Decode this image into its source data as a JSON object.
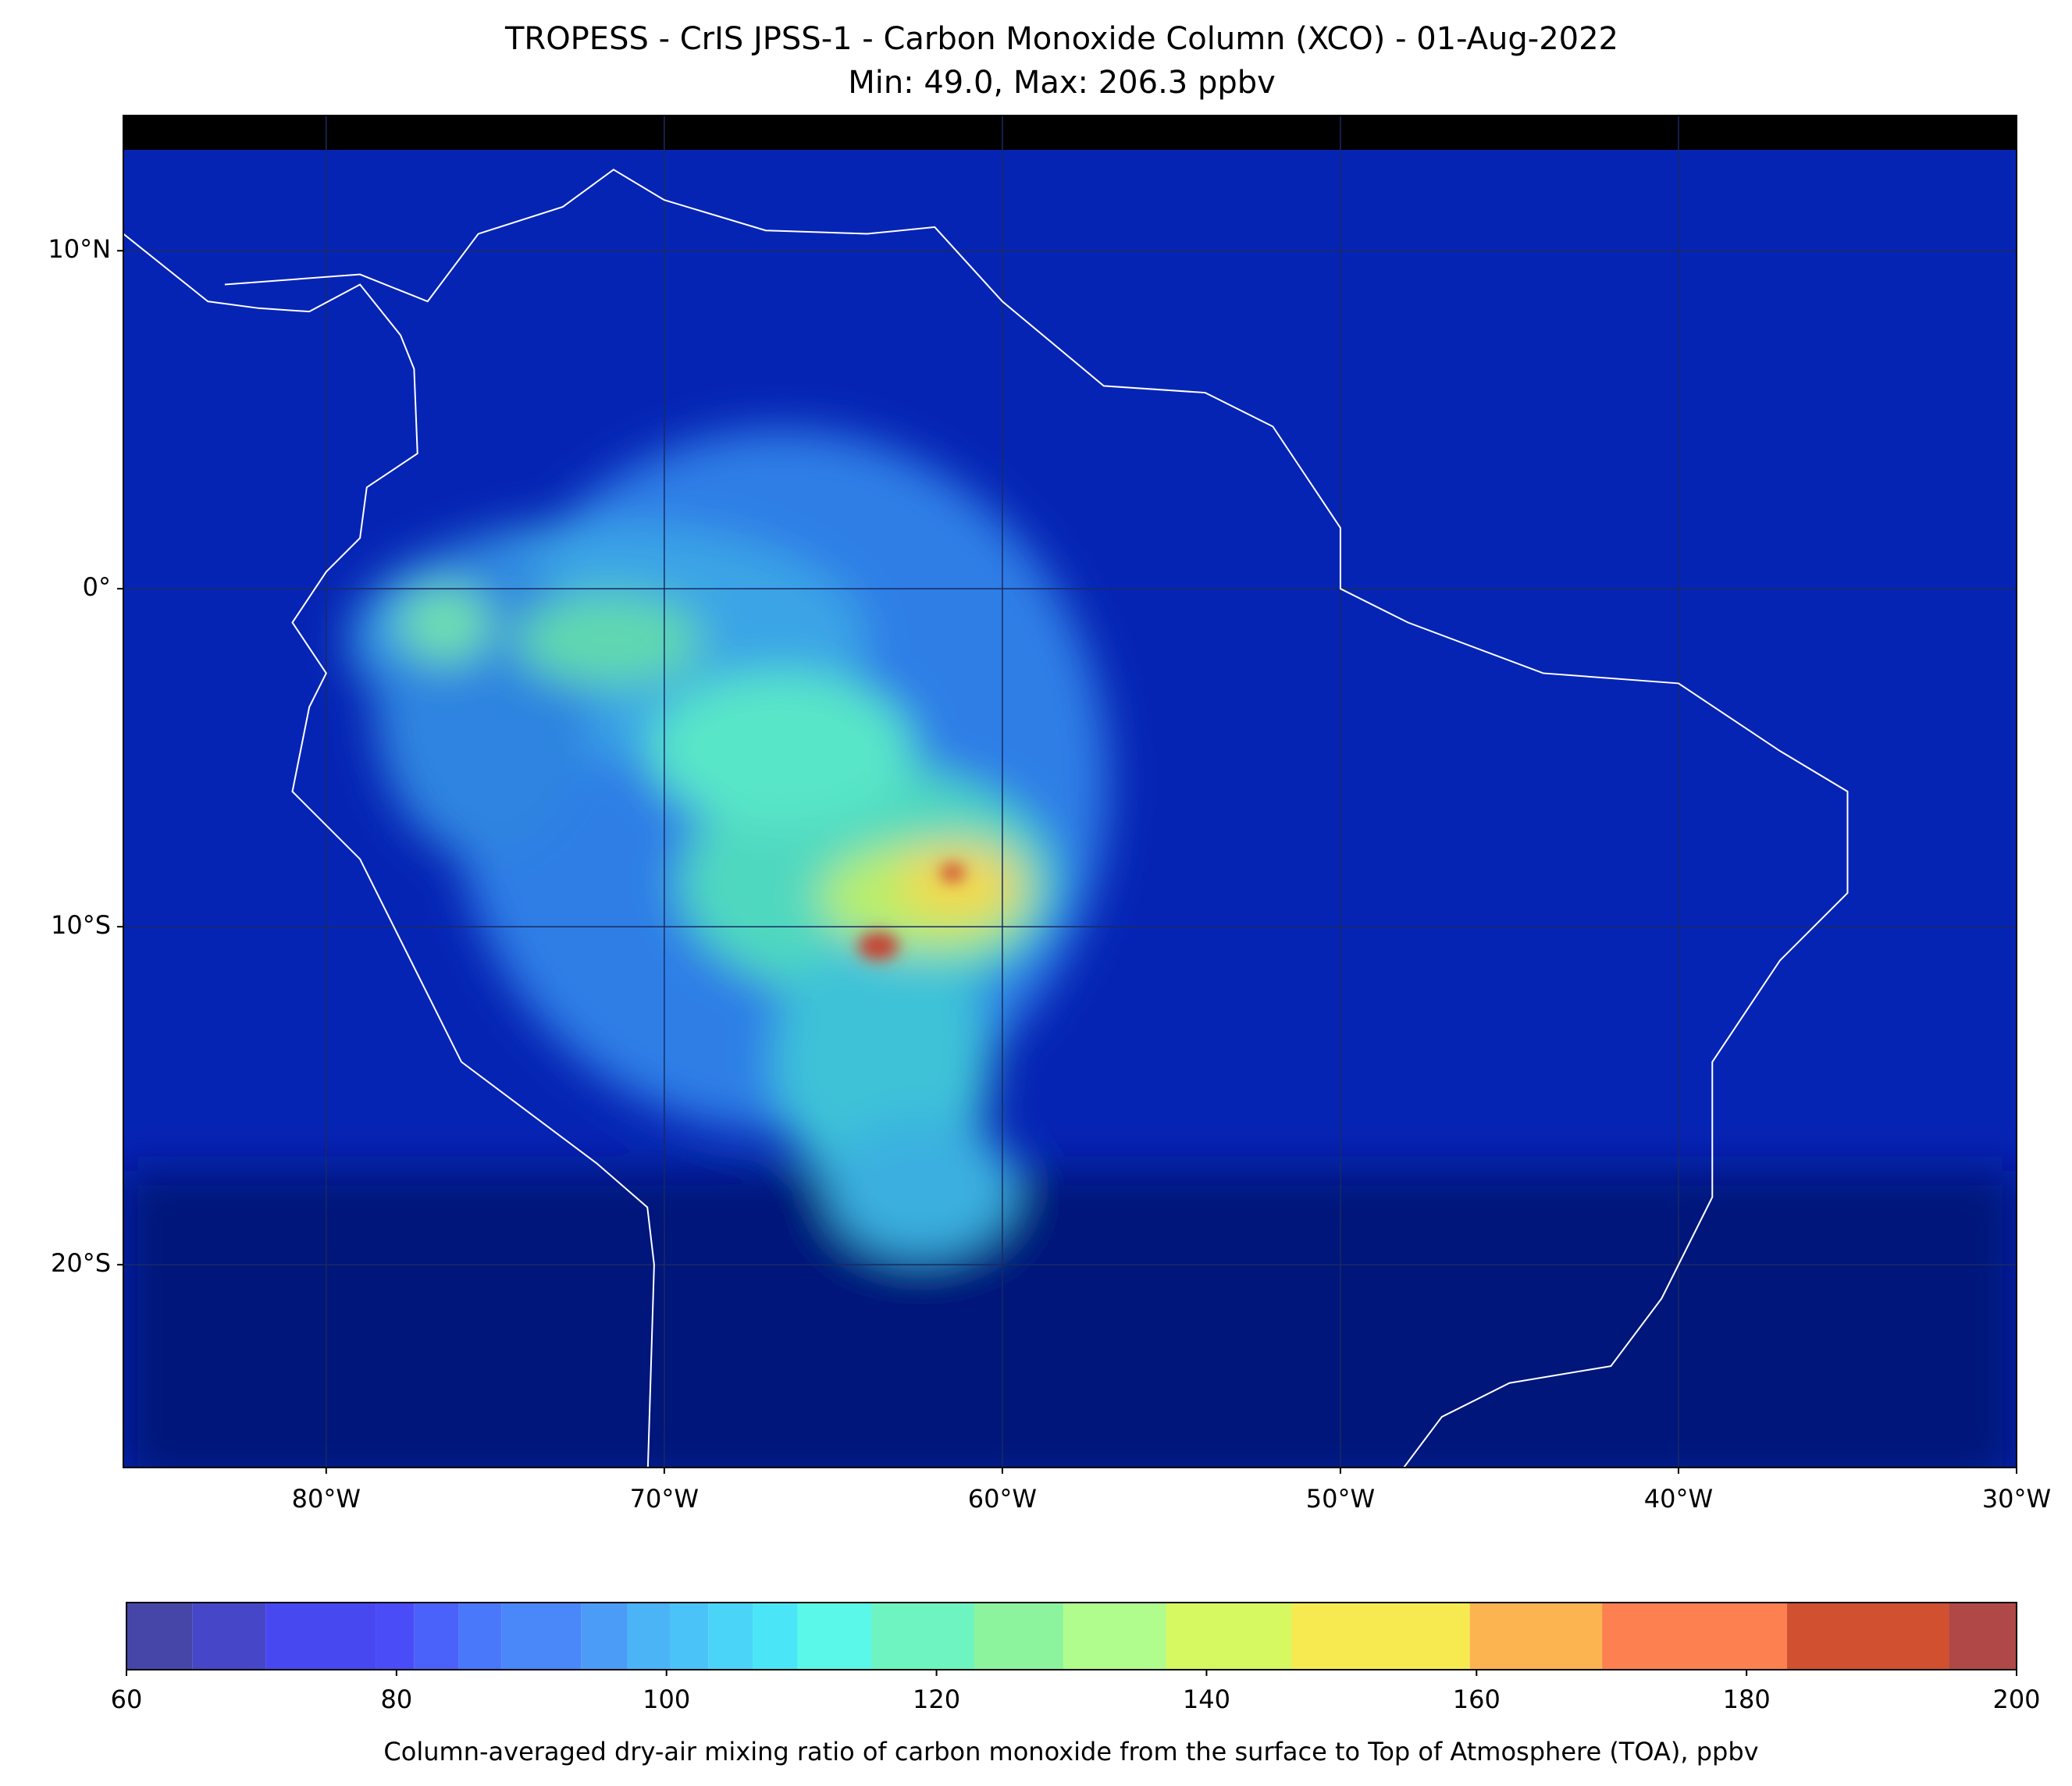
{
  "chart_data": {
    "type": "map",
    "title": "TROPESS - CrIS JPSS-1 - Carbon Monoxide Column (XCO) - 01-Aug-2022",
    "subtitle": "Min: 49.0, Max: 206.3 ppbv",
    "xlim": [
      -86,
      -30
    ],
    "ylim": [
      -26,
      14
    ],
    "xticks": [
      {
        "value": -80,
        "label": "80°W"
      },
      {
        "value": -70,
        "label": "70°W"
      },
      {
        "value": -60,
        "label": "60°W"
      },
      {
        "value": -50,
        "label": "50°W"
      },
      {
        "value": -40,
        "label": "40°W"
      },
      {
        "value": -30,
        "label": "30°W"
      }
    ],
    "yticks": [
      {
        "value": 10,
        "label": "10°N"
      },
      {
        "value": 0,
        "label": "0°"
      },
      {
        "value": -10,
        "label": "10°S"
      },
      {
        "value": -20,
        "label": "20°S"
      }
    ],
    "grid": true,
    "colorbar": {
      "bins": [
        60,
        64.9,
        70.3,
        78.5,
        81.3,
        84.6,
        87.8,
        93.7,
        97.1,
        100.3,
        103.1,
        106.4,
        109.7,
        115.2,
        122.8,
        129.4,
        137,
        146.3,
        159.5,
        169.3,
        183,
        195,
        200
      ],
      "colors": [
        "#4646a8",
        "#4646c8",
        "#4848f0",
        "#4a4cf8",
        "#4a62fa",
        "#4a78fa",
        "#4a88fa",
        "#4a9cf6",
        "#4ab4f6",
        "#4ac4f8",
        "#4ad4f8",
        "#4ae6f8",
        "#5af8e8",
        "#6ef4c0",
        "#8cf49c",
        "#b0fc8c",
        "#d6f860",
        "#f6ea50",
        "#fcb450",
        "#fc8050",
        "#d05030",
        "#b04848"
      ],
      "ticks": [
        60,
        80,
        100,
        120,
        140,
        160,
        180,
        200
      ],
      "label": "Column-averaged dry-air mixing ratio of carbon monoxide from the surface to Top of Atmosphere (TOA), ppbv"
    }
  }
}
